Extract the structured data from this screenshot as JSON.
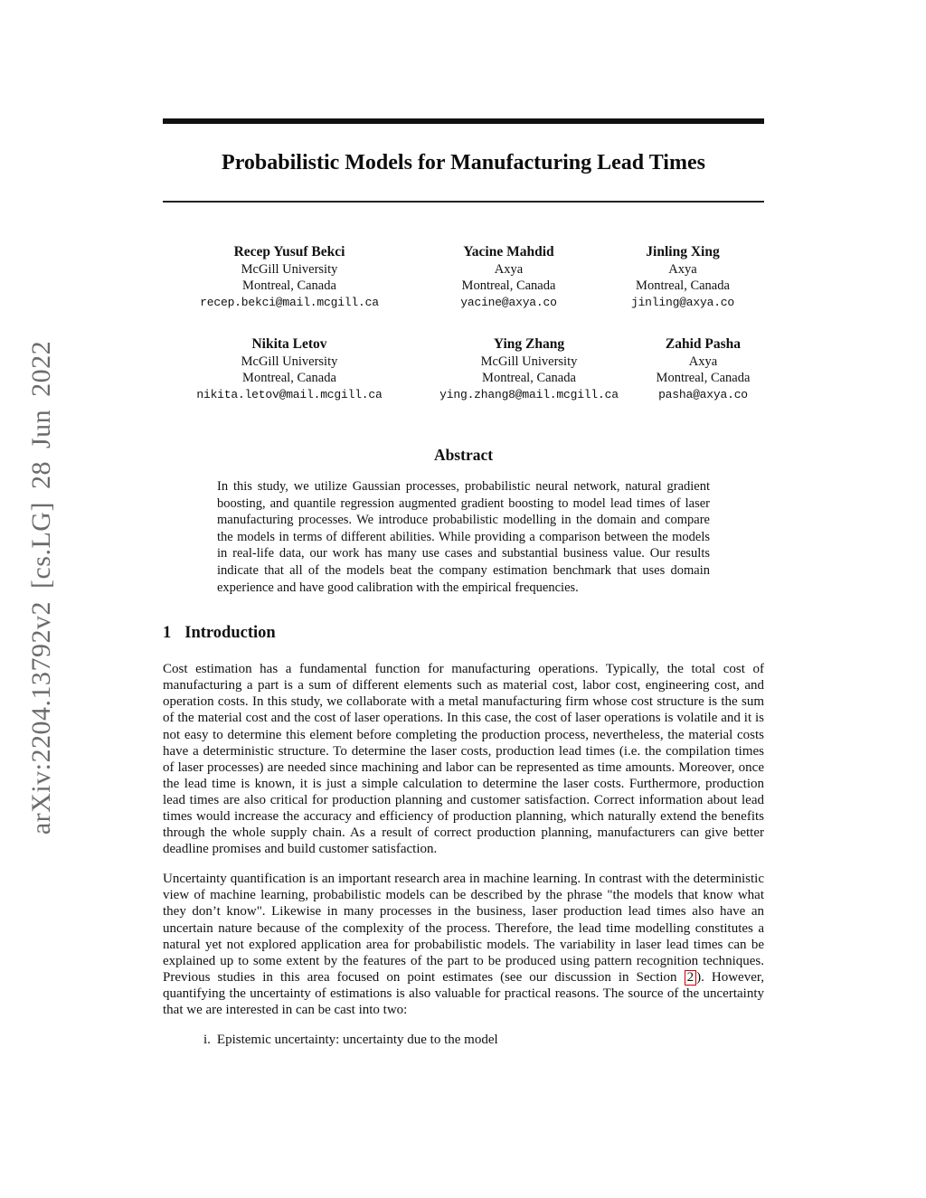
{
  "page": {
    "arxiv_banner": "arXiv:2204.13792v2 [cs.LG] 28 Jun 2022",
    "title": "Probabilistic Models for Manufacturing Lead Times"
  },
  "authors": [
    {
      "name": "Recep Yusuf Bekci",
      "affiliation": "McGill University",
      "location": "Montreal, Canada",
      "email": "recep.bekci@mail.mcgill.ca"
    },
    {
      "name": "Yacine Mahdid",
      "affiliation": "Axya",
      "location": "Montreal, Canada",
      "email": "yacine@axya.co"
    },
    {
      "name": "Jinling Xing",
      "affiliation": "Axya",
      "location": "Montreal, Canada",
      "email": "jinling@axya.co"
    },
    {
      "name": "Nikita Letov",
      "affiliation": "McGill University",
      "location": "Montreal, Canada",
      "email": "nikita.letov@mail.mcgill.ca"
    },
    {
      "name": "Ying Zhang",
      "affiliation": "McGill University",
      "location": "Montreal, Canada",
      "email": "ying.zhang8@mail.mcgill.ca"
    },
    {
      "name": "Zahid Pasha",
      "affiliation": "Axya",
      "location": "Montreal, Canada",
      "email": "pasha@axya.co"
    }
  ],
  "abstract": {
    "heading": "Abstract",
    "text": "In this study, we utilize Gaussian processes, probabilistic neural network, natural gradient boosting, and quantile regression augmented gradient boosting to model lead times of laser manufacturing processes. We introduce probabilistic modelling in the domain and compare the models in terms of different abilities. While providing a comparison between the models in real-life data, our work has many use cases and substantial business value. Our results indicate that all of the models beat the company estimation benchmark that uses domain experience and have good calibration with the empirical frequencies."
  },
  "introduction": {
    "number": "1",
    "title": "Introduction",
    "paragraph1": "Cost estimation has a fundamental function for manufacturing operations. Typically, the total cost of manufacturing a part is a sum of different elements such as material cost, labor cost, engineering cost, and operation costs. In this study, we collaborate with a metal manufacturing firm whose cost structure is the sum of the material cost and the cost of laser operations. In this case, the cost of laser operations is volatile and it is not easy to determine this element before completing the production process, nevertheless, the material costs have a deterministic structure. To determine the laser costs, production lead times (i.e. the compilation times of laser processes) are needed since machining and labor can be represented as time amounts. Moreover, once the lead time is known, it is just a simple calculation to determine the laser costs. Furthermore, production lead times are also critical for production planning and customer satisfaction. Correct information about lead times would increase the accuracy and efficiency of production planning, which naturally extend the benefits through the whole supply chain. As a result of correct production planning, manufacturers can give better deadline promises and build customer satisfaction.",
    "paragraph2_pre": "Uncertainty quantification is an important research area in machine learning. In contrast with the deterministic view of machine learning, probabilistic models can be described by the phrase \"the models that know what they don’t know\". Likewise in many processes in the business, laser production lead times also have an uncertain nature because of the complexity of the process. Therefore, the lead time modelling constitutes a natural yet not explored application area for probabilistic models. The variability in laser lead times can be explained up to some extent by the features of the part to be produced using pattern recognition techniques. Previous studies in this area focused on point estimates (see our discussion in Section ",
    "section_ref": "2",
    "paragraph2_post": "). However, quantifying the uncertainty of estimations is also valuable for practical reasons. The source of the uncertainty that we are interested in can be cast into two:",
    "list_item_marker": "i.",
    "list_item_text": "Epistemic uncertainty: uncertainty due to the model"
  },
  "colors": {
    "link_box": "#cc0000",
    "banner_gray": "#6b6b6b"
  }
}
